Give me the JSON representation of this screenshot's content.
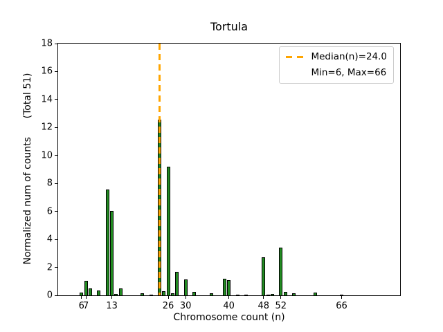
{
  "title": "Tortula",
  "axes": {
    "xlabel": "Chromosome count (n)",
    "ylabel": "Normalized num of counts      (Total 51)"
  },
  "legend": {
    "median_label": "Median(n)=24.0",
    "minmax_label": "Min=6, Max=66"
  },
  "colors": {
    "bar_fill": "#228B22",
    "bar_edge": "#000000",
    "median_line": "#FFA500",
    "legend_border": "#CCCCCC",
    "text": "#000000"
  },
  "chart_data": {
    "type": "bar",
    "title": "Tortula",
    "xlabel": "Chromosome count (n)",
    "ylabel": "Normalized num of counts (Total 51)",
    "x": [
      6,
      7,
      8,
      10,
      12,
      13,
      14,
      15,
      20,
      22,
      24,
      25,
      26,
      27,
      28,
      30,
      32,
      36,
      39,
      40,
      42,
      44,
      48,
      49,
      50,
      52,
      53,
      55,
      60,
      66
    ],
    "values": [
      0.2,
      1.05,
      0.5,
      0.35,
      7.55,
      6.05,
      0.1,
      0.5,
      0.15,
      0.05,
      12.55,
      0.3,
      9.2,
      0.15,
      1.7,
      1.15,
      0.25,
      0.15,
      1.2,
      1.1,
      0.05,
      0.03,
      2.7,
      0.05,
      0.12,
      3.4,
      0.25,
      0.15,
      0.2,
      0.05
    ],
    "total_counts": 51,
    "xticks": [
      6,
      7,
      13,
      26,
      30,
      40,
      48,
      52,
      66
    ],
    "yticks": [
      0,
      2,
      4,
      6,
      8,
      10,
      12,
      14,
      16,
      18
    ],
    "xlim": [
      0.6,
      79.5
    ],
    "ylim": [
      0,
      18
    ],
    "bar_width_units": 0.8,
    "median_line": {
      "x": 24.0,
      "style": "dashed",
      "color": "#FFA500"
    },
    "annotations": {
      "median": "Median(n)=24.0",
      "minmax": "Min=6, Max=66",
      "min": 6,
      "max": 66
    },
    "legend_position": "upper right",
    "grid": false
  }
}
